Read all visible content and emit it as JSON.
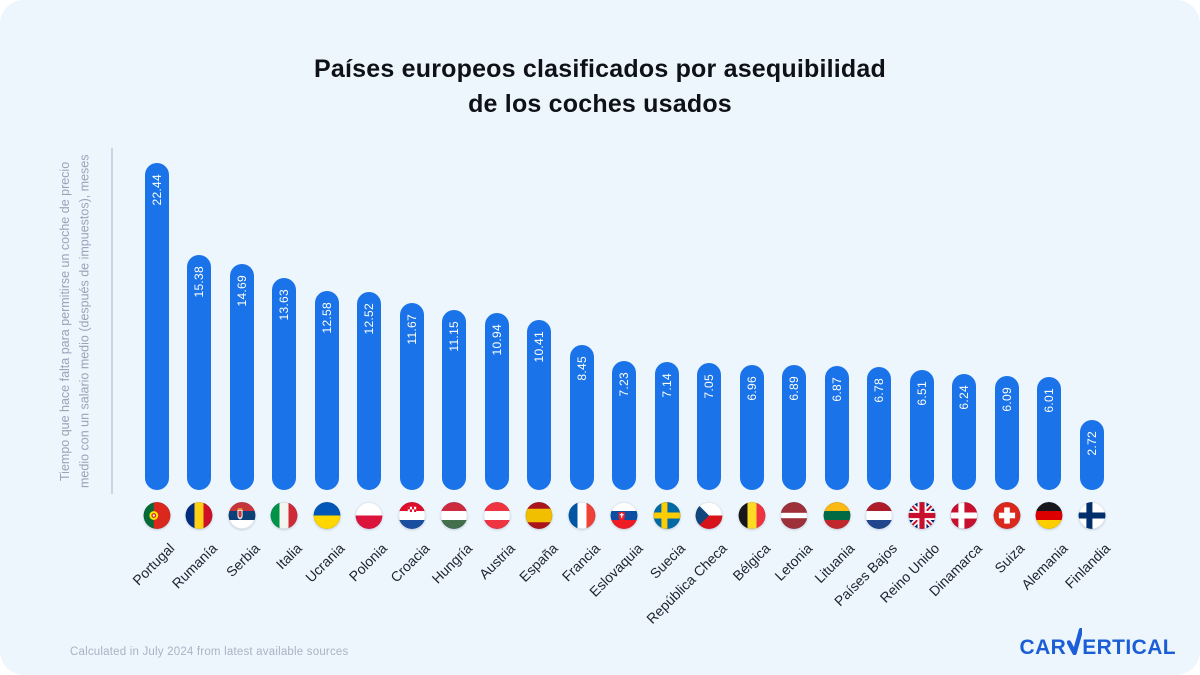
{
  "page": {
    "title_line1": "Países europeos clasificados por asequibilidad",
    "title_line2": "de los coches usados",
    "footer_note": "Calculated in July 2024 from latest available sources",
    "logo": {
      "before_v": "CAR",
      "after_v": "ERTICAL"
    },
    "colors": {
      "card_bg": "#EDF5FD",
      "bar": "#1A73E8",
      "title": "#0E1118",
      "axis_label": "#98A4B8",
      "axis_line": "#C9D4E4",
      "country_label": "#1D2330",
      "value_label": "#FFFFFF",
      "footer": "#A9B4C4",
      "logo_blue": "#1B5ED6"
    }
  },
  "chart_data": {
    "type": "bar",
    "title": "Países europeos clasificados por asequibilidad de los coches usados",
    "ylabel": "Tiempo que hace falta para permitirse un coche de precio medio con un salario medio (después de impuestos), meses",
    "xlabel": "",
    "grid": false,
    "legend": false,
    "ylim": [
      0,
      24
    ],
    "value_label_decimals": 2,
    "categories": [
      "Portugal",
      "Rumanía",
      "Serbia",
      "Italia",
      "Ucrania",
      "Polonia",
      "Croacia",
      "Hungría",
      "Austria",
      "España",
      "Francia",
      "Eslovaquia",
      "Suecia",
      "República Checa",
      "Bélgica",
      "Letonia",
      "Lituania",
      "Países Bajos",
      "Reino Unido",
      "Dinamarca",
      "Suiza",
      "Alemania",
      "Finlandia"
    ],
    "values": [
      22.44,
      15.38,
      14.69,
      13.63,
      12.58,
      12.52,
      11.67,
      11.15,
      10.94,
      10.41,
      8.45,
      7.23,
      7.14,
      7.05,
      6.96,
      6.89,
      6.87,
      6.78,
      6.51,
      6.24,
      6.09,
      6.01,
      2.72
    ],
    "flags": [
      {
        "name": "flag-portugal",
        "type": "v",
        "stripes": [
          [
            "#046A38",
            0.38
          ],
          [
            "#DA291C",
            0.62
          ]
        ],
        "overlay": "pt"
      },
      {
        "name": "flag-romania",
        "type": "v",
        "stripes": [
          [
            "#002B7F",
            0.333
          ],
          [
            "#FCD116",
            0.334
          ],
          [
            "#CE1126",
            0.333
          ]
        ]
      },
      {
        "name": "flag-serbia",
        "type": "h",
        "stripes": [
          [
            "#C6363C",
            0.333
          ],
          [
            "#0C4077",
            0.334
          ],
          [
            "#FFFFFF",
            0.333
          ]
        ],
        "overlay": "rs"
      },
      {
        "name": "flag-italy",
        "type": "v",
        "stripes": [
          [
            "#009246",
            0.333
          ],
          [
            "#F4F5F0",
            0.334
          ],
          [
            "#CE2B37",
            0.333
          ]
        ]
      },
      {
        "name": "flag-ukraine",
        "type": "h",
        "stripes": [
          [
            "#0057B7",
            0.5
          ],
          [
            "#FFD700",
            0.5
          ]
        ]
      },
      {
        "name": "flag-poland",
        "type": "h",
        "stripes": [
          [
            "#FFFFFF",
            0.5
          ],
          [
            "#DC143C",
            0.5
          ]
        ]
      },
      {
        "name": "flag-croatia",
        "type": "h",
        "stripes": [
          [
            "#DD0E2A",
            0.333
          ],
          [
            "#FFFFFF",
            0.334
          ],
          [
            "#1A4FA0",
            0.333
          ]
        ],
        "overlay": "hr"
      },
      {
        "name": "flag-hungary",
        "type": "h",
        "stripes": [
          [
            "#CD2A3E",
            0.333
          ],
          [
            "#FFFFFF",
            0.334
          ],
          [
            "#436F4D",
            0.333
          ]
        ]
      },
      {
        "name": "flag-austria",
        "type": "h",
        "stripes": [
          [
            "#EF3340",
            0.333
          ],
          [
            "#FFFFFF",
            0.334
          ],
          [
            "#EF3340",
            0.333
          ]
        ]
      },
      {
        "name": "flag-spain",
        "type": "h",
        "stripes": [
          [
            "#AA151B",
            0.25
          ],
          [
            "#F1BF00",
            0.5
          ],
          [
            "#AA151B",
            0.25
          ]
        ]
      },
      {
        "name": "flag-france",
        "type": "v",
        "stripes": [
          [
            "#0055A4",
            0.333
          ],
          [
            "#FFFFFF",
            0.334
          ],
          [
            "#EF4135",
            0.333
          ]
        ]
      },
      {
        "name": "flag-slovakia",
        "type": "h",
        "stripes": [
          [
            "#FFFFFF",
            0.333
          ],
          [
            "#0B4EA2",
            0.334
          ],
          [
            "#EE1C25",
            0.333
          ]
        ],
        "overlay": "sk"
      },
      {
        "name": "flag-sweden",
        "type": "nordic",
        "bg": "#006AA7",
        "cross": "#FECC02"
      },
      {
        "name": "flag-czechia",
        "type": "cz"
      },
      {
        "name": "flag-belgium",
        "type": "v",
        "stripes": [
          [
            "#17161A",
            0.333
          ],
          [
            "#FDDA24",
            0.334
          ],
          [
            "#EF3340",
            0.333
          ]
        ]
      },
      {
        "name": "flag-latvia",
        "type": "h",
        "stripes": [
          [
            "#9E3039",
            0.4
          ],
          [
            "#FFFFFF",
            0.2
          ],
          [
            "#9E3039",
            0.4
          ]
        ]
      },
      {
        "name": "flag-lithuania",
        "type": "h",
        "stripes": [
          [
            "#FDB913",
            0.333
          ],
          [
            "#006A44",
            0.334
          ],
          [
            "#C1272D",
            0.333
          ]
        ]
      },
      {
        "name": "flag-netherlands",
        "type": "h",
        "stripes": [
          [
            "#AE1C28",
            0.333
          ],
          [
            "#FFFFFF",
            0.334
          ],
          [
            "#21468B",
            0.333
          ]
        ]
      },
      {
        "name": "flag-uk",
        "type": "uk"
      },
      {
        "name": "flag-denmark",
        "type": "nordic",
        "bg": "#C8102E",
        "cross": "#FFFFFF"
      },
      {
        "name": "flag-switzerland",
        "type": "plus",
        "bg": "#DA291C",
        "cross": "#FFFFFF"
      },
      {
        "name": "flag-germany",
        "type": "h",
        "stripes": [
          [
            "#17161A",
            0.333
          ],
          [
            "#DD0000",
            0.334
          ],
          [
            "#FFCE00",
            0.333
          ]
        ]
      },
      {
        "name": "flag-finland",
        "type": "nordic",
        "bg": "#FFFFFF",
        "cross": "#002F6C"
      }
    ]
  }
}
